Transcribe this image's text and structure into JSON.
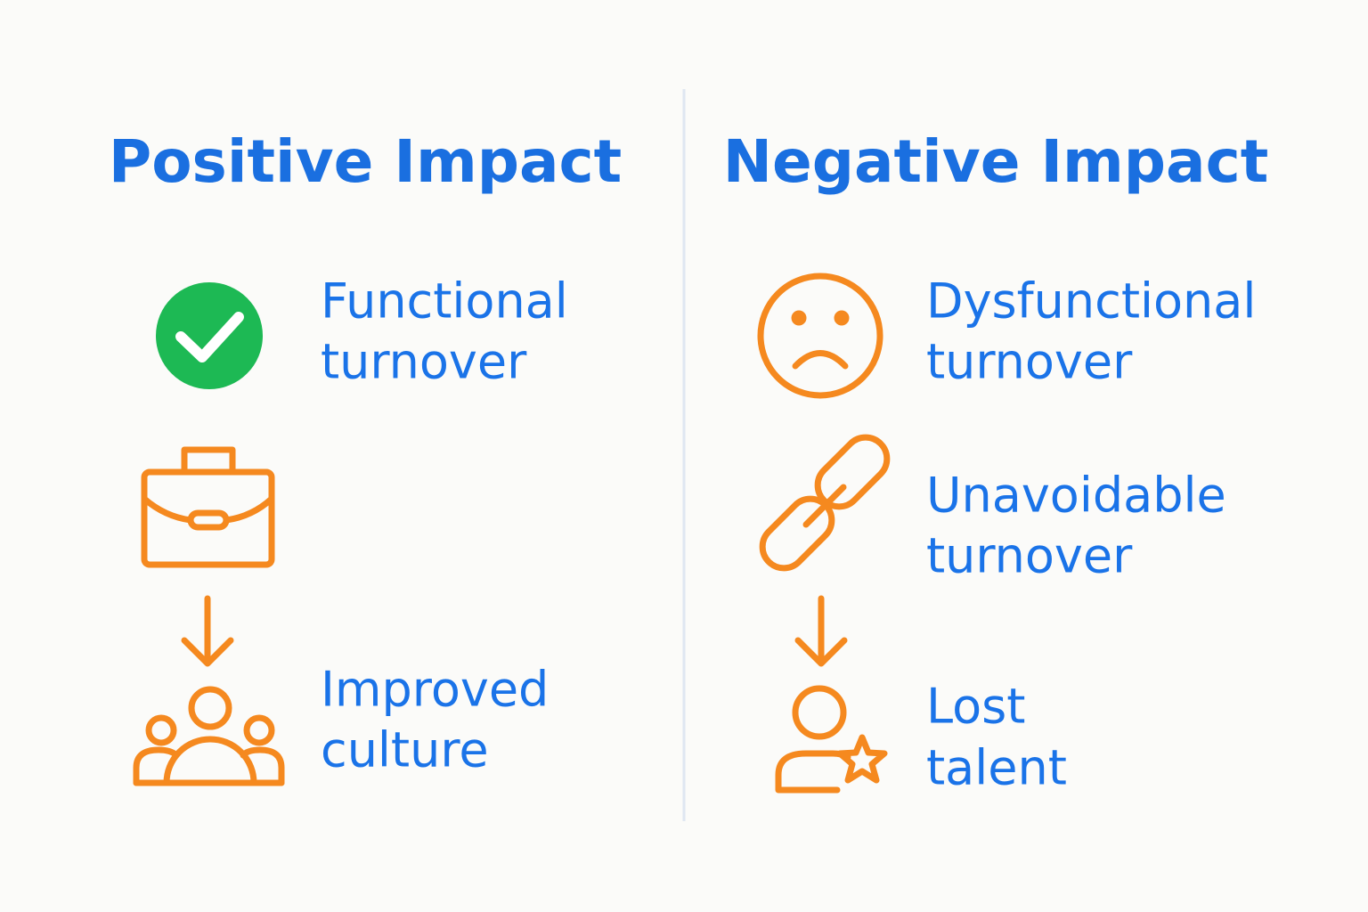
{
  "columns": [
    {
      "title": "Positive Impact",
      "items": [
        {
          "lines": [
            "Functional",
            "turnover"
          ]
        },
        {
          "lines": [
            "Improved",
            "culture"
          ]
        }
      ]
    },
    {
      "title": "Negative Impact",
      "items": [
        {
          "lines": [
            "Dysfunctional",
            "turnover"
          ]
        },
        {
          "lines": [
            "Unavoidable",
            "turnover"
          ]
        },
        {
          "lines": [
            "Lost",
            "talent"
          ]
        }
      ]
    }
  ]
}
